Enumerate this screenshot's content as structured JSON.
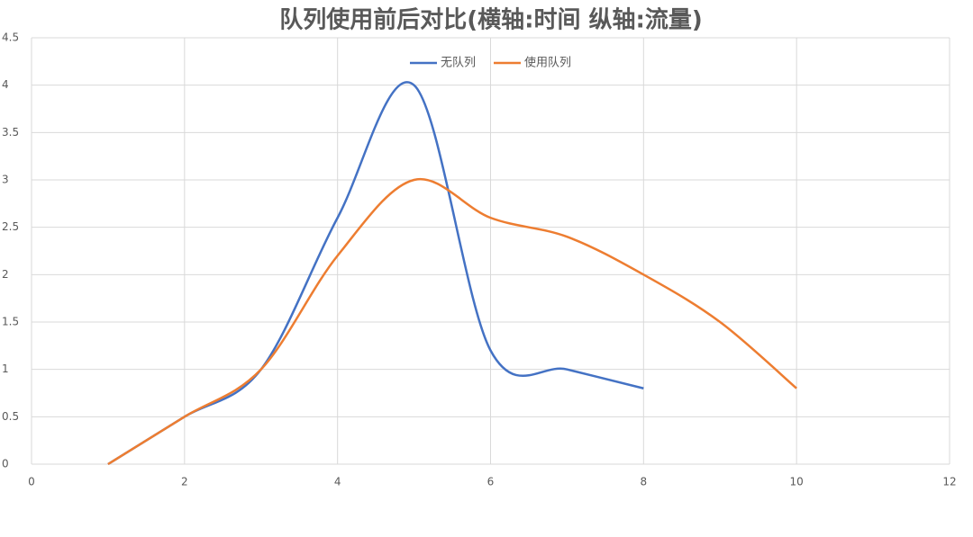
{
  "chart_data": {
    "type": "line",
    "title": "队列使用前后对比(横轴:时间 纵轴:流量)",
    "series": [
      {
        "name": "无队列",
        "color": "#4472c4",
        "x": [
          1,
          2,
          3,
          4,
          5,
          6,
          7,
          8
        ],
        "values": [
          0,
          0.5,
          1,
          2.6,
          4,
          1.2,
          1,
          0.8
        ]
      },
      {
        "name": "使用队列",
        "color": "#ed7d31",
        "x": [
          1,
          2,
          3,
          4,
          5,
          6,
          7,
          8,
          9,
          10
        ],
        "values": [
          0,
          0.5,
          1,
          2.2,
          3,
          2.6,
          2.4,
          2,
          1.5,
          0.8
        ]
      }
    ],
    "xlim": [
      0,
      12
    ],
    "xticks": [
      0,
      2,
      4,
      6,
      8,
      10,
      12
    ],
    "ylim": [
      0,
      4.5
    ],
    "yticks": [
      0,
      0.5,
      1,
      1.5,
      2,
      2.5,
      3,
      3.5,
      4,
      4.5
    ],
    "grid": true,
    "smooth": true,
    "legend": "top"
  }
}
